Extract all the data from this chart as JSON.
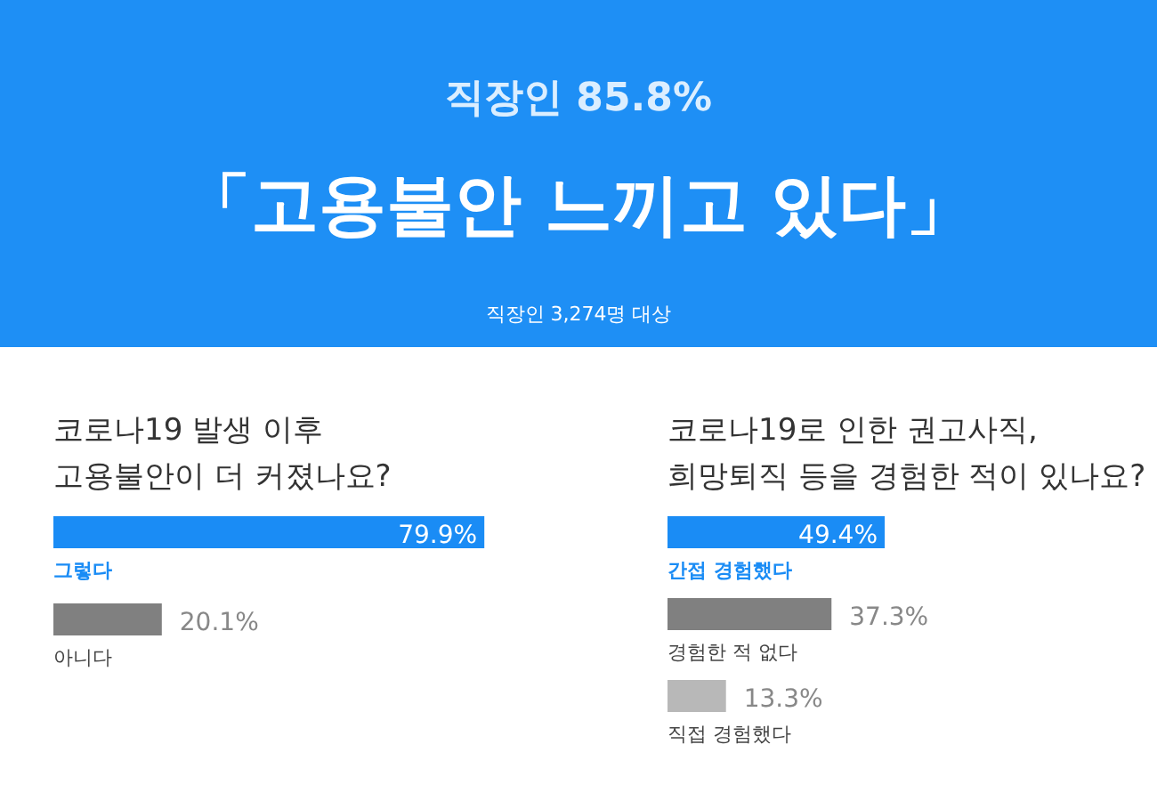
{
  "chart_data": [
    {
      "type": "other",
      "title": "직장인 85.8%",
      "subtitle": "「고용불안 느끼고 있다」",
      "annotations": [
        "직장인 3,274명 대상"
      ]
    },
    {
      "type": "bar",
      "orientation": "horizontal",
      "title": "코로나19 발생 이후\n고용불안이 더 커졌나요?",
      "categories": [
        "그렇다",
        "아니다"
      ],
      "values": [
        79.9,
        20.1
      ],
      "colors": [
        "#1a8cf5",
        "#808080"
      ],
      "value_labels": [
        "79.9%",
        "20.1%"
      ]
    },
    {
      "type": "bar",
      "orientation": "horizontal",
      "title": "코로나19로 인한 권고사직,\n희망퇴직 등을 경험한 적이 있나요?",
      "categories": [
        "간접 경험했다",
        "경험한 적 없다",
        "직접 경험했다"
      ],
      "values": [
        49.4,
        37.3,
        13.3
      ],
      "colors": [
        "#1a8cf5",
        "#808080",
        "#b8b8b8"
      ],
      "value_labels": [
        "49.4%",
        "37.3%",
        "13.3%"
      ]
    }
  ]
}
